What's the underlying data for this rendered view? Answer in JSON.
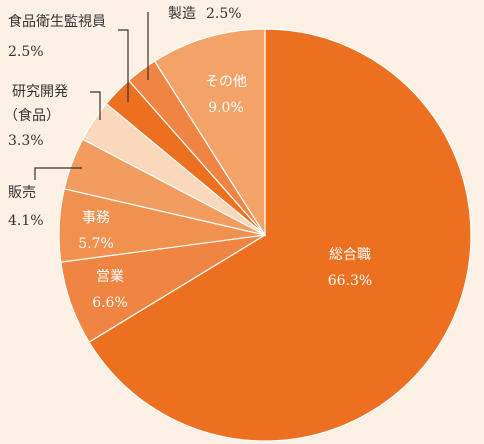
{
  "chart_data": {
    "type": "pie",
    "categories": [
      "総合職",
      "営業",
      "事務",
      "販売",
      "研究開発（食品）",
      "食品衛生監視員",
      "製造",
      "その他"
    ],
    "values": [
      66.3,
      6.6,
      5.7,
      4.1,
      3.3,
      2.5,
      2.5,
      9.0
    ],
    "value_labels": [
      "66.3%",
      "6.6%",
      "5.7%",
      "4.1%",
      "3.3%",
      "2.5%",
      "2.5%",
      "9.0%"
    ],
    "colors": [
      "#ec7020",
      "#ef8443",
      "#f19150",
      "#f29c60",
      "#fad8bb",
      "#ec7020",
      "#ef8443",
      "#f3a368"
    ]
  }
}
